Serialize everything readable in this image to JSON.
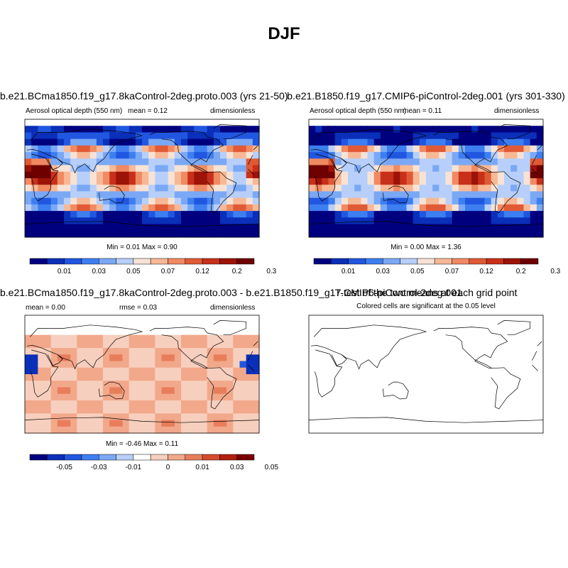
{
  "page_title": "DJF",
  "colors": {
    "aod": [
      "#00007f",
      "#0a2fb8",
      "#2157e0",
      "#3d7ef0",
      "#7aa8f5",
      "#b7cffa",
      "#f7e3d5",
      "#f7b896",
      "#f08a62",
      "#e05a35",
      "#c8301a",
      "#9c1308",
      "#6e0000"
    ],
    "diff": [
      "#00007f",
      "#0a2fb8",
      "#2157e0",
      "#3d7ef0",
      "#7aa8f5",
      "#b7cffa",
      "#ffffff",
      "#f7cfbe",
      "#f2a88a",
      "#e87d5c",
      "#d44b2e",
      "#b01f10",
      "#7a0000"
    ]
  },
  "chart_data": [
    {
      "type": "heatmap",
      "title": "b.e21.BCma1850.f19_g17.8kaControl-2deg.proto.003 (yrs 21-50)",
      "left_label": "Aerosol optical depth (550 nm)",
      "center_label": "mean =  0.12",
      "right_label": "dimensionless",
      "min_max": "Min =  0.01 Max =  0.90",
      "colorbar_ticks": [
        "0.01",
        "0.03",
        "0.05",
        "0.07",
        "0.12",
        "0.2",
        "0.3"
      ]
    },
    {
      "type": "heatmap",
      "title": "b.e21.B1850.f19_g17.CMIP6-piControl-2deg.001 (yrs 301-330)",
      "left_label": "Aerosol optical depth (550 nm)",
      "center_label": "mean =  0.11",
      "right_label": "dimensionless",
      "min_max": "Min =  0.00 Max =  1.36",
      "colorbar_ticks": [
        "0.01",
        "0.03",
        "0.05",
        "0.07",
        "0.12",
        "0.2",
        "0.3"
      ]
    },
    {
      "type": "heatmap",
      "title": "b.e21.BCma1850.f19_g17.8kaControl-2deg.proto.003 - b.e21.B1850.f19_g17.CMIP6-piControl-2deg.001",
      "left_label": "mean =  0.00",
      "center_label": "rmse =  0.03",
      "right_label": "dimensionless",
      "min_max": "Min =  -0.46 Max =  0.11",
      "colorbar_ticks": [
        "-0.05",
        "-0.03",
        "-0.01",
        "0",
        "0.01",
        "0.03",
        "0.05"
      ]
    },
    {
      "type": "heatmap",
      "title": "T-test of the two means at each grid point",
      "subtitle": "Colored cells are significant at the 0.05 level"
    }
  ]
}
